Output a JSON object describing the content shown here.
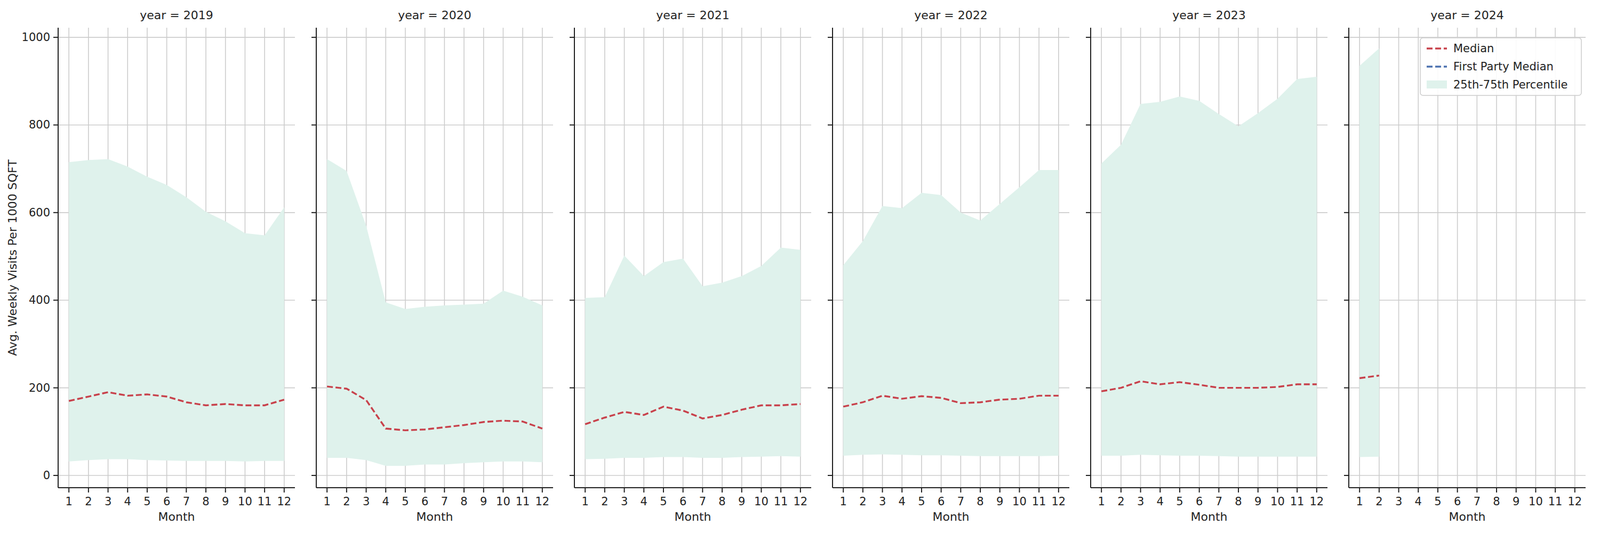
{
  "chart_data": [
    {
      "type": "line",
      "title": "year = 2019",
      "x_label": "Month",
      "y_label": "Avg. Weekly Visits Per 1000 SQFT",
      "x": [
        1,
        2,
        3,
        4,
        5,
        6,
        7,
        8,
        9,
        10,
        11,
        12
      ],
      "xlim": [
        0.45,
        12.55
      ],
      "xticks": [
        1,
        2,
        3,
        4,
        5,
        6,
        7,
        8,
        9,
        10,
        11,
        12
      ],
      "ylim": [
        -28,
        1022
      ],
      "yticks": [
        0,
        200,
        400,
        600,
        800,
        1000
      ],
      "grid": true,
      "series": [
        {
          "name": "Median",
          "color": "#c8414b",
          "line_style": "dashed",
          "values": [
            170,
            180,
            190,
            182,
            185,
            180,
            167,
            160,
            163,
            160,
            160,
            173
          ]
        },
        {
          "name": "First Party Median",
          "color": "#4c72b0",
          "line_style": "dashed",
          "values": [
            null,
            null,
            null,
            null,
            null,
            null,
            null,
            null,
            null,
            null,
            null,
            null
          ]
        },
        {
          "name": "25th-75th Percentile",
          "type": "area",
          "color": "#dff2ec",
          "values": [
            715,
            720,
            722,
            705,
            682,
            663,
            635,
            602,
            580,
            553,
            548,
            612
          ],
          "low": [
            32,
            35,
            37,
            37,
            35,
            34,
            33,
            33,
            33,
            32,
            33,
            33
          ]
        }
      ]
    },
    {
      "type": "line",
      "title": "year = 2020",
      "x_label": "Month",
      "tick_labels": "x",
      "x": [
        1,
        2,
        3,
        4,
        5,
        6,
        7,
        8,
        9,
        10,
        11,
        12
      ],
      "xlim": [
        0.45,
        12.55
      ],
      "xticks": [
        1,
        2,
        3,
        4,
        5,
        6,
        7,
        8,
        9,
        10,
        11,
        12
      ],
      "ylim": [
        -28,
        1022
      ],
      "yticks": [
        0,
        200,
        400,
        600,
        800,
        1000
      ],
      "grid": true,
      "series": [
        {
          "name": "Median",
          "color": "#c8414b",
          "line_style": "dashed",
          "values": [
            203,
            198,
            172,
            107,
            103,
            105,
            110,
            115,
            122,
            125,
            123,
            107
          ]
        },
        {
          "name": "First Party Median",
          "color": "#4c72b0",
          "line_style": "dashed",
          "values": [
            null,
            null,
            null,
            null,
            null,
            null,
            null,
            null,
            null,
            null,
            null,
            null
          ]
        },
        {
          "name": "25th-75th Percentile",
          "type": "area",
          "color": "#dff2ec",
          "values": [
            722,
            695,
            570,
            395,
            380,
            385,
            388,
            390,
            392,
            422,
            408,
            388
          ],
          "low": [
            40,
            40,
            35,
            22,
            22,
            25,
            25,
            28,
            30,
            32,
            32,
            30
          ]
        }
      ]
    },
    {
      "type": "line",
      "title": "year = 2021",
      "x_label": "Month",
      "tick_labels": "x",
      "x": [
        1,
        2,
        3,
        4,
        5,
        6,
        7,
        8,
        9,
        10,
        11,
        12
      ],
      "xlim": [
        0.45,
        12.55
      ],
      "xticks": [
        1,
        2,
        3,
        4,
        5,
        6,
        7,
        8,
        9,
        10,
        11,
        12
      ],
      "ylim": [
        -28,
        1022
      ],
      "yticks": [
        0,
        200,
        400,
        600,
        800,
        1000
      ],
      "grid": true,
      "series": [
        {
          "name": "Median",
          "color": "#c8414b",
          "line_style": "dashed",
          "values": [
            117,
            132,
            145,
            138,
            157,
            148,
            130,
            138,
            150,
            160,
            160,
            163
          ]
        },
        {
          "name": "First Party Median",
          "color": "#4c72b0",
          "line_style": "dashed",
          "values": [
            null,
            null,
            null,
            null,
            null,
            null,
            null,
            null,
            null,
            null,
            null,
            null
          ]
        },
        {
          "name": "25th-75th Percentile",
          "type": "area",
          "color": "#dff2ec",
          "values": [
            405,
            407,
            502,
            455,
            487,
            495,
            432,
            440,
            455,
            478,
            520,
            515
          ],
          "low": [
            37,
            38,
            40,
            40,
            42,
            42,
            40,
            40,
            42,
            43,
            44,
            43
          ]
        }
      ]
    },
    {
      "type": "line",
      "title": "year = 2022",
      "x_label": "Month",
      "tick_labels": "x",
      "x": [
        1,
        2,
        3,
        4,
        5,
        6,
        7,
        8,
        9,
        10,
        11,
        12
      ],
      "xlim": [
        0.45,
        12.55
      ],
      "xticks": [
        1,
        2,
        3,
        4,
        5,
        6,
        7,
        8,
        9,
        10,
        11,
        12
      ],
      "ylim": [
        -28,
        1022
      ],
      "yticks": [
        0,
        200,
        400,
        600,
        800,
        1000
      ],
      "grid": true,
      "series": [
        {
          "name": "Median",
          "color": "#c8414b",
          "line_style": "dashed",
          "values": [
            157,
            167,
            182,
            175,
            181,
            177,
            165,
            167,
            173,
            175,
            182,
            182
          ]
        },
        {
          "name": "First Party Median",
          "color": "#4c72b0",
          "line_style": "dashed",
          "values": [
            null,
            null,
            null,
            null,
            null,
            null,
            null,
            null,
            null,
            null,
            null,
            null
          ]
        },
        {
          "name": "25th-75th Percentile",
          "type": "area",
          "color": "#dff2ec",
          "values": [
            480,
            535,
            615,
            610,
            645,
            640,
            600,
            582,
            620,
            658,
            697,
            697
          ],
          "low": [
            45,
            47,
            48,
            47,
            46,
            46,
            45,
            44,
            44,
            44,
            44,
            45
          ]
        }
      ]
    },
    {
      "type": "line",
      "title": "year = 2023",
      "x_label": "Month",
      "tick_labels": "x",
      "x": [
        1,
        2,
        3,
        4,
        5,
        6,
        7,
        8,
        9,
        10,
        11,
        12
      ],
      "xlim": [
        0.45,
        12.55
      ],
      "xticks": [
        1,
        2,
        3,
        4,
        5,
        6,
        7,
        8,
        9,
        10,
        11,
        12
      ],
      "ylim": [
        -28,
        1022
      ],
      "yticks": [
        0,
        200,
        400,
        600,
        800,
        1000
      ],
      "grid": true,
      "series": [
        {
          "name": "Median",
          "color": "#c8414b",
          "line_style": "dashed",
          "values": [
            192,
            200,
            215,
            208,
            213,
            207,
            200,
            200,
            200,
            202,
            208,
            208
          ]
        },
        {
          "name": "First Party Median",
          "color": "#4c72b0",
          "line_style": "dashed",
          "values": [
            null,
            null,
            null,
            null,
            null,
            null,
            null,
            null,
            null,
            null,
            null,
            null
          ]
        },
        {
          "name": "25th-75th Percentile",
          "type": "area",
          "color": "#dff2ec",
          "values": [
            712,
            755,
            848,
            853,
            865,
            855,
            825,
            797,
            827,
            860,
            905,
            910
          ],
          "low": [
            45,
            45,
            47,
            46,
            45,
            45,
            44,
            43,
            43,
            43,
            43,
            43
          ]
        }
      ]
    },
    {
      "type": "line",
      "title": "year = 2024",
      "x_label": "Month",
      "tick_labels": "x",
      "legend": "upper right",
      "x": [
        1,
        2,
        3,
        4,
        5,
        6,
        7,
        8,
        9,
        10,
        11,
        12
      ],
      "xlim": [
        0.45,
        12.55
      ],
      "xticks": [
        1,
        2,
        3,
        4,
        5,
        6,
        7,
        8,
        9,
        10,
        11,
        12
      ],
      "ylim": [
        -28,
        1022
      ],
      "yticks": [
        0,
        200,
        400,
        600,
        800,
        1000
      ],
      "grid": true,
      "series": [
        {
          "name": "Median",
          "color": "#c8414b",
          "line_style": "dashed",
          "values": [
            222,
            228,
            null,
            null,
            null,
            null,
            null,
            null,
            null,
            null,
            null,
            null
          ]
        },
        {
          "name": "First Party Median",
          "color": "#4c72b0",
          "line_style": "dashed",
          "values": [
            null,
            null,
            null,
            null,
            null,
            null,
            null,
            null,
            null,
            null,
            null,
            null
          ]
        },
        {
          "name": "25th-75th Percentile",
          "type": "area",
          "color": "#dff2ec",
          "values": [
            935,
            975,
            null,
            null,
            null,
            null,
            null,
            null,
            null,
            null,
            null,
            null
          ],
          "low": [
            42,
            43,
            null,
            null,
            null,
            null,
            null,
            null,
            null,
            null,
            null,
            null
          ]
        }
      ]
    }
  ]
}
